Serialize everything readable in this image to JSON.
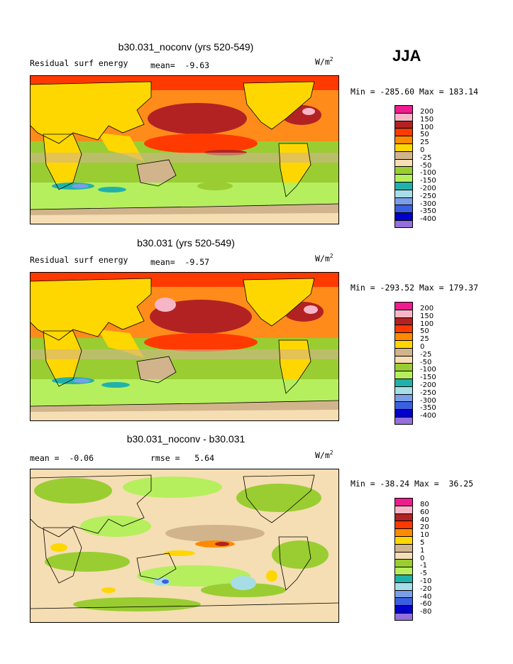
{
  "season": "JJA",
  "colors": {
    "levels_main": [
      "#ee1c8e",
      "#f7b6c7",
      "#b22222",
      "#ff3a00",
      "#ff8a00",
      "#ffd700",
      "#d2b48c",
      "#f5deb3",
      "#9acd32",
      "#b5ef5e",
      "#20b2aa",
      "#a6dde6",
      "#7b9ee8",
      "#3a5fe0",
      "#0000c8",
      "#9370db"
    ],
    "ocean_warm": "#ff8c1a",
    "ocean_hot": "#b22222",
    "land": "#ffd700",
    "southern": "#9acd32"
  },
  "panels": [
    {
      "title": "b30.031_noconv (yrs 520-549)",
      "left_label": "Residual surf energy",
      "mean_text": "mean=  -9.63",
      "units": "W/m",
      "units_sup": "2",
      "minmax": "Min = -285.60 Max = 183.14",
      "legend_labels": [
        "200",
        "150",
        "100",
        "50",
        "25",
        "0",
        "-25",
        "-50",
        "-100",
        "-150",
        "-200",
        "-250",
        "-300",
        "-350",
        "-400"
      ]
    },
    {
      "title": "b30.031 (yrs 520-549)",
      "left_label": "Residual surf energy",
      "mean_text": "mean=  -9.57",
      "units": "W/m",
      "units_sup": "2",
      "minmax": "Min = -293.52 Max = 179.37",
      "legend_labels": [
        "200",
        "150",
        "100",
        "50",
        "25",
        "0",
        "-25",
        "-50",
        "-100",
        "-150",
        "-200",
        "-250",
        "-300",
        "-350",
        "-400"
      ]
    },
    {
      "title": "b30.031_noconv - b30.031",
      "left_label": "mean =  -0.06",
      "mean_text": "rmse =   5.64",
      "units": "W/m",
      "units_sup": "2",
      "minmax": "Min = -38.24 Max =  36.25",
      "legend_labels": [
        "80",
        "60",
        "40",
        "20",
        "10",
        "5",
        "1",
        "0",
        "-1",
        "-5",
        "-10",
        "-20",
        "-40",
        "-60",
        "-80"
      ]
    }
  ]
}
